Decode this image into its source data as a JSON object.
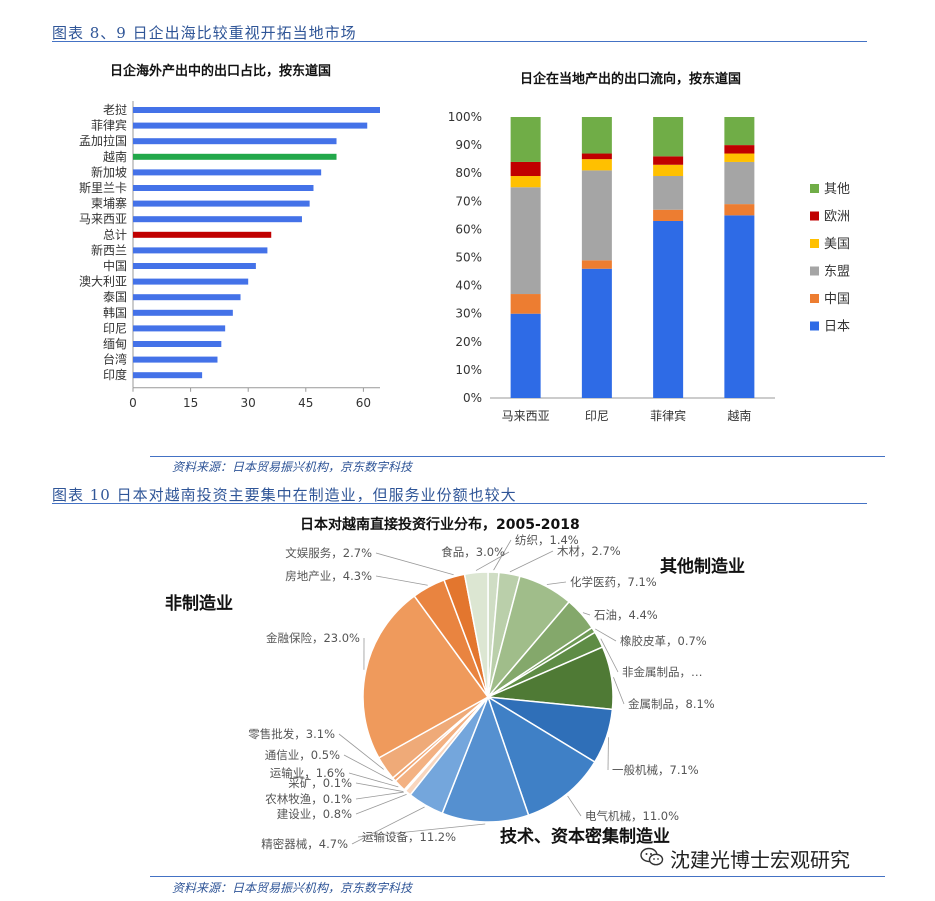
{
  "fig1_title": "图表 8、9 日企出海比较重视开拓当地市场",
  "fig2_title": "图表 10 日本对越南投资主要集中在制造业，但服务业份额也较大",
  "source1": "资料来源：日本贸易振兴机构，京东数字科技",
  "source2": "资料来源：日本贸易振兴机构，京东数字科技",
  "watermark": "沈建光博士宏观研究",
  "colors": {
    "accent": "#2F5597",
    "bar_default": "#4472E8",
    "bar_vietnam": "#22A84A",
    "bar_total": "#C00000"
  },
  "chart_data": [
    {
      "type": "bar",
      "orientation": "horizontal",
      "title": "日企海外产出中的出口占比，按东道国",
      "categories": [
        "老挝",
        "菲律宾",
        "孟加拉国",
        "越南",
        "新加坡",
        "斯里兰卡",
        "柬埔寨",
        "马来西亚",
        "总计",
        "新西兰",
        "中国",
        "澳大利亚",
        "泰国",
        "韩国",
        "印尼",
        "缅甸",
        "台湾",
        "印度"
      ],
      "values": [
        66,
        61,
        53,
        53,
        49,
        47,
        46,
        44,
        36,
        35,
        32,
        30,
        28,
        26,
        24,
        23,
        22,
        18
      ],
      "highlight": {
        "越南": "#22A84A",
        "总计": "#C00000"
      },
      "xlim": [
        0,
        75
      ],
      "xticks": [
        "0",
        "15",
        "30",
        "45",
        "60",
        "75"
      ]
    },
    {
      "type": "bar",
      "stacked": true,
      "title": "日企在当地产出的出口流向，按东道国",
      "categories": [
        "马来西亚",
        "印尼",
        "菲律宾",
        "越南"
      ],
      "series": [
        {
          "name": "日本",
          "color": "#2E6BE6",
          "values": [
            30,
            46,
            63,
            65
          ]
        },
        {
          "name": "中国",
          "color": "#ED7D31",
          "values": [
            7,
            3,
            4,
            4
          ]
        },
        {
          "name": "东盟",
          "color": "#A5A5A5",
          "values": [
            38,
            32,
            12,
            15
          ]
        },
        {
          "name": "美国",
          "color": "#FFC000",
          "values": [
            4,
            4,
            4,
            3
          ]
        },
        {
          "name": "欧洲",
          "color": "#C00000",
          "values": [
            5,
            2,
            3,
            3
          ]
        },
        {
          "name": "其他",
          "color": "#70AD47",
          "values": [
            16,
            13,
            14,
            10
          ]
        }
      ],
      "ylim": [
        0,
        100
      ],
      "yticks": [
        "0%",
        "10%",
        "20%",
        "30%",
        "40%",
        "50%",
        "60%",
        "70%",
        "80%",
        "90%",
        "100%"
      ],
      "legend_order": [
        "其他",
        "欧洲",
        "美国",
        "东盟",
        "中国",
        "日本"
      ],
      "legend": "right"
    },
    {
      "type": "pie",
      "title": "日本对越南直接投资行业分布，2005-2018",
      "group_labels": {
        "other_manufacturing": "其他制造业",
        "non_manufacturing": "非制造业",
        "capital_intensive": "技术、资本密集制造业"
      },
      "slices": [
        {
          "label": "纺织",
          "text": "纺织，1.4%",
          "value": 1.4,
          "color": "#CFDDC4"
        },
        {
          "label": "木材",
          "text": "木材，2.7%",
          "value": 2.7,
          "color": "#BACFAA"
        },
        {
          "label": "化学医药",
          "text": "化学医药，7.1%",
          "value": 7.1,
          "color": "#A0BD8A"
        },
        {
          "label": "石油",
          "text": "石油，4.4%",
          "value": 4.4,
          "color": "#84A86B"
        },
        {
          "label": "橡胶皮革",
          "text": "橡胶皮革，0.7%",
          "value": 0.7,
          "color": "#6E9955"
        },
        {
          "label": "非金属制品",
          "text": "非金属制品，…",
          "value": 2.1,
          "color": "#5E8C45"
        },
        {
          "label": "金属制品",
          "text": "金属制品，8.1%",
          "value": 8.1,
          "color": "#4F7A35"
        },
        {
          "label": "一般机械",
          "text": "一般机械，7.1%",
          "value": 7.1,
          "color": "#2F6FB8"
        },
        {
          "label": "电气机械",
          "text": "电气机械，11.0%",
          "value": 11.0,
          "color": "#3F80C6"
        },
        {
          "label": "运输设备",
          "text": "运输设备，11.2%",
          "value": 11.2,
          "color": "#5590D0"
        },
        {
          "label": "精密器械",
          "text": "精密器械，4.7%",
          "value": 4.7,
          "color": "#74A6DC"
        },
        {
          "label": "建设业",
          "text": "建设业，0.8%",
          "value": 0.8,
          "color": "#F9D6BE"
        },
        {
          "label": "农林牧渔",
          "text": "农林牧渔，0.1%",
          "value": 0.1,
          "color": "#F7C9A8"
        },
        {
          "label": "采矿",
          "text": "采矿，0.1%",
          "value": 0.1,
          "color": "#F5BC96"
        },
        {
          "label": "运输业",
          "text": "运输业，1.6%",
          "value": 1.6,
          "color": "#F3B182"
        },
        {
          "label": "通信业",
          "text": "通信业，0.5%",
          "value": 0.5,
          "color": "#F1A470"
        },
        {
          "label": "零售批发",
          "text": "零售批发，3.1%",
          "value": 3.1,
          "color": "#EFAA78"
        },
        {
          "label": "金融保险",
          "text": "金融保险，23.0%",
          "value": 23.0,
          "color": "#EF9A5C"
        },
        {
          "label": "房地产业",
          "text": "房地产业，4.3%",
          "value": 4.3,
          "color": "#E98440"
        },
        {
          "label": "文娱服务",
          "text": "文娱服务，2.7%",
          "value": 2.7,
          "color": "#E3762E"
        },
        {
          "label": "食品",
          "text": "食品，3.0%",
          "value": 3.0,
          "color": "#DCE6D2"
        }
      ]
    }
  ]
}
